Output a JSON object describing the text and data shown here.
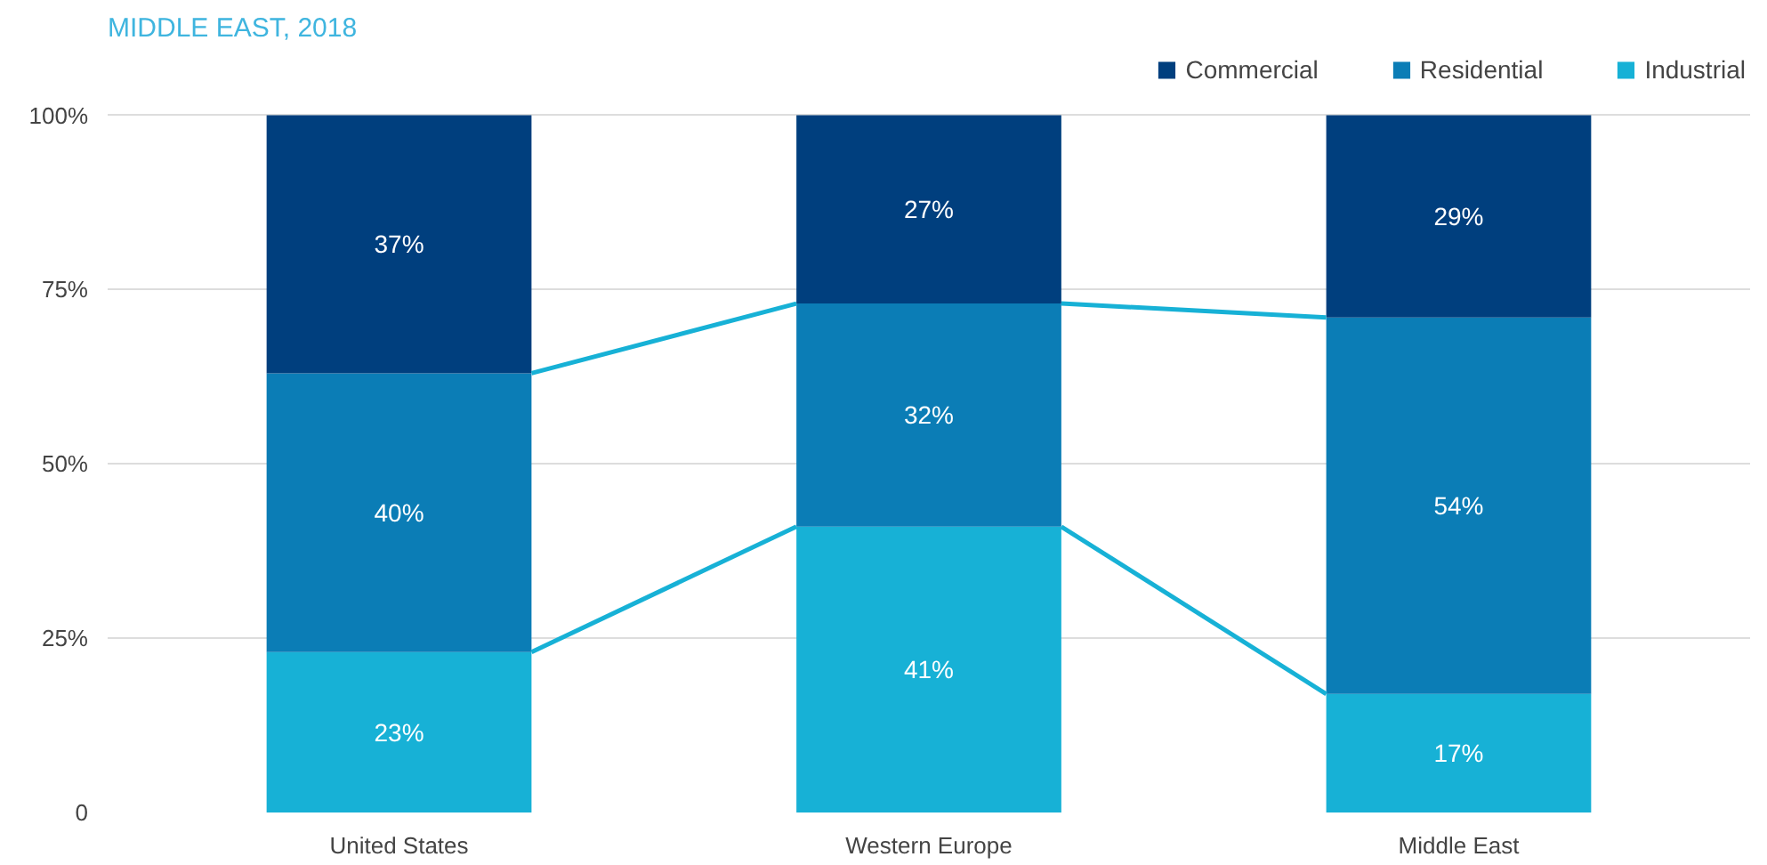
{
  "chart_data": {
    "type": "bar",
    "stacked": true,
    "title": "MIDDLE EAST, 2018",
    "categories": [
      "United States",
      "Western Europe",
      "Middle East"
    ],
    "series": [
      {
        "name": "Industrial",
        "color": "#17b1d6",
        "values": [
          23,
          41,
          17
        ],
        "value_labels": [
          "23%",
          "41%",
          "17%"
        ]
      },
      {
        "name": "Residential",
        "color": "#0b7db6",
        "values": [
          40,
          32,
          54
        ],
        "value_labels": [
          "40%",
          "32%",
          "54%"
        ]
      },
      {
        "name": "Commercial",
        "color": "#003f7e",
        "values": [
          37,
          27,
          29
        ],
        "value_labels": [
          "37%",
          "27%",
          "29%"
        ]
      }
    ],
    "ylim": [
      0,
      100
    ],
    "yticks": [
      {
        "value": 0,
        "label": "0"
      },
      {
        "value": 25,
        "label": "25%"
      },
      {
        "value": 50,
        "label": "50%"
      },
      {
        "value": 75,
        "label": "75%"
      },
      {
        "value": 100,
        "label": "100%"
      }
    ],
    "grid": "y",
    "legend": "top right"
  }
}
